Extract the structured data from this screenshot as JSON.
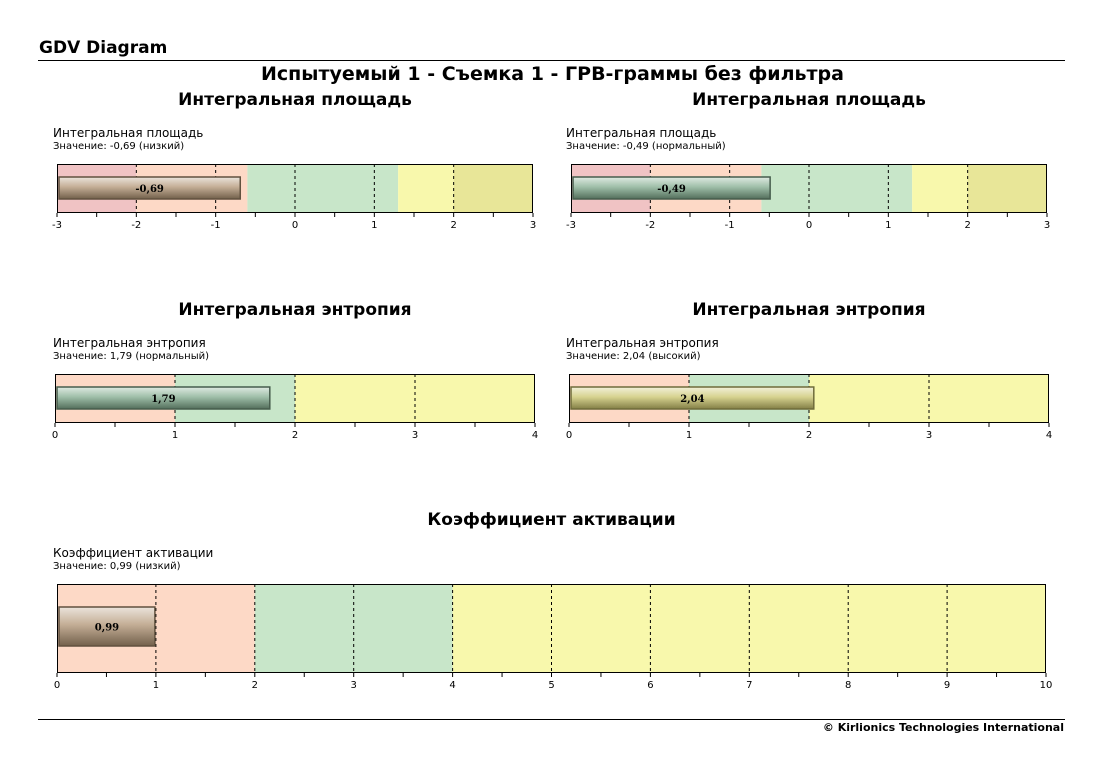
{
  "header": {
    "app_title": "GDV Diagram",
    "main_title": "Испытуемый 1 - Съемка 1 - ГРВ-граммы без фильтра"
  },
  "footer": {
    "copyright": "© Kirlionics Technologies International"
  },
  "colors": {
    "very_low": "#f0c3c4",
    "low": "#fdd9c6",
    "normal": "#c8e6c9",
    "high": "#f8f8ac",
    "very_high": "#e8e698",
    "bar_low": "#b09373",
    "bar_normal": "#7fa98c",
    "bar_high": "#c9c46b"
  },
  "panels": [
    {
      "title": "Интегральная площадь",
      "subtitle": "Интегральная площадь",
      "value_text": "Значение: -0,69 (низкий)",
      "chart_data": {
        "type": "bar",
        "xlim": [
          -3,
          3
        ],
        "ticks": [
          "-3",
          "-2",
          "-1",
          "0",
          "1",
          "2",
          "3"
        ],
        "tick_values": [
          -3,
          -2,
          -1,
          0,
          1,
          2,
          3
        ],
        "minor_step": 0.5,
        "zones": [
          {
            "from": -3,
            "to": -2,
            "color": "very_low"
          },
          {
            "from": -2,
            "to": -0.6,
            "color": "low"
          },
          {
            "from": -0.6,
            "to": 1.3,
            "color": "normal"
          },
          {
            "from": 1.3,
            "to": 2,
            "color": "high"
          },
          {
            "from": 2,
            "to": 3,
            "color": "very_high"
          }
        ],
        "dashed_lines": [
          -2,
          -1,
          0,
          1,
          2
        ],
        "value": -0.69,
        "label": "-0,69",
        "bar_color": "bar_low"
      }
    },
    {
      "title": "Интегральная площадь",
      "subtitle": "Интегральная площадь",
      "value_text": "Значение: -0,49 (нормальный)",
      "chart_data": {
        "type": "bar",
        "xlim": [
          -3,
          3
        ],
        "ticks": [
          "-3",
          "-2",
          "-1",
          "0",
          "1",
          "2",
          "3"
        ],
        "tick_values": [
          -3,
          -2,
          -1,
          0,
          1,
          2,
          3
        ],
        "minor_step": 0.5,
        "zones": [
          {
            "from": -3,
            "to": -2,
            "color": "very_low"
          },
          {
            "from": -2,
            "to": -0.6,
            "color": "low"
          },
          {
            "from": -0.6,
            "to": 1.3,
            "color": "normal"
          },
          {
            "from": 1.3,
            "to": 2,
            "color": "high"
          },
          {
            "from": 2,
            "to": 3,
            "color": "very_high"
          }
        ],
        "dashed_lines": [
          -2,
          -1,
          0,
          1,
          2
        ],
        "value": -0.49,
        "label": "-0,49",
        "bar_color": "bar_normal"
      }
    },
    {
      "title": "Интегральная энтропия",
      "subtitle": "Интегральная энтропия",
      "value_text": "Значение: 1,79 (нормальный)",
      "chart_data": {
        "type": "bar",
        "xlim": [
          0,
          4
        ],
        "ticks": [
          "0",
          "1",
          "2",
          "3",
          "4"
        ],
        "tick_values": [
          0,
          1,
          2,
          3,
          4
        ],
        "minor_step": 0.5,
        "zones": [
          {
            "from": 0,
            "to": 1,
            "color": "low"
          },
          {
            "from": 1,
            "to": 2,
            "color": "normal"
          },
          {
            "from": 2,
            "to": 4,
            "color": "high"
          }
        ],
        "dashed_lines": [
          1,
          2,
          3
        ],
        "value": 1.79,
        "label": "1,79",
        "bar_color": "bar_normal"
      }
    },
    {
      "title": "Интегральная энтропия",
      "subtitle": "Интегральная энтропия",
      "value_text": "Значение: 2,04 (высокий)",
      "chart_data": {
        "type": "bar",
        "xlim": [
          0,
          4
        ],
        "ticks": [
          "0",
          "1",
          "2",
          "3",
          "4"
        ],
        "tick_values": [
          0,
          1,
          2,
          3,
          4
        ],
        "minor_step": 0.5,
        "zones": [
          {
            "from": 0,
            "to": 1,
            "color": "low"
          },
          {
            "from": 1,
            "to": 2,
            "color": "normal"
          },
          {
            "from": 2,
            "to": 4,
            "color": "high"
          }
        ],
        "dashed_lines": [
          1,
          2,
          3
        ],
        "value": 2.04,
        "label": "2,04",
        "bar_color": "bar_high"
      }
    },
    {
      "title": "Коэффициент активации",
      "subtitle": "Коэффициент активации",
      "value_text": "Значение: 0,99 (низкий)",
      "chart_data": {
        "type": "bar",
        "xlim": [
          0,
          10
        ],
        "ticks": [
          "0",
          "1",
          "2",
          "3",
          "4",
          "5",
          "6",
          "7",
          "8",
          "9",
          "10"
        ],
        "tick_values": [
          0,
          1,
          2,
          3,
          4,
          5,
          6,
          7,
          8,
          9,
          10
        ],
        "minor_step": 0.5,
        "zones": [
          {
            "from": 0,
            "to": 2,
            "color": "low"
          },
          {
            "from": 2,
            "to": 4,
            "color": "normal"
          },
          {
            "from": 4,
            "to": 10,
            "color": "high"
          }
        ],
        "dashed_lines": [
          1,
          2,
          3,
          4,
          5,
          6,
          7,
          8,
          9
        ],
        "value": 0.99,
        "label": "0,99",
        "bar_color": "bar_low"
      }
    }
  ]
}
